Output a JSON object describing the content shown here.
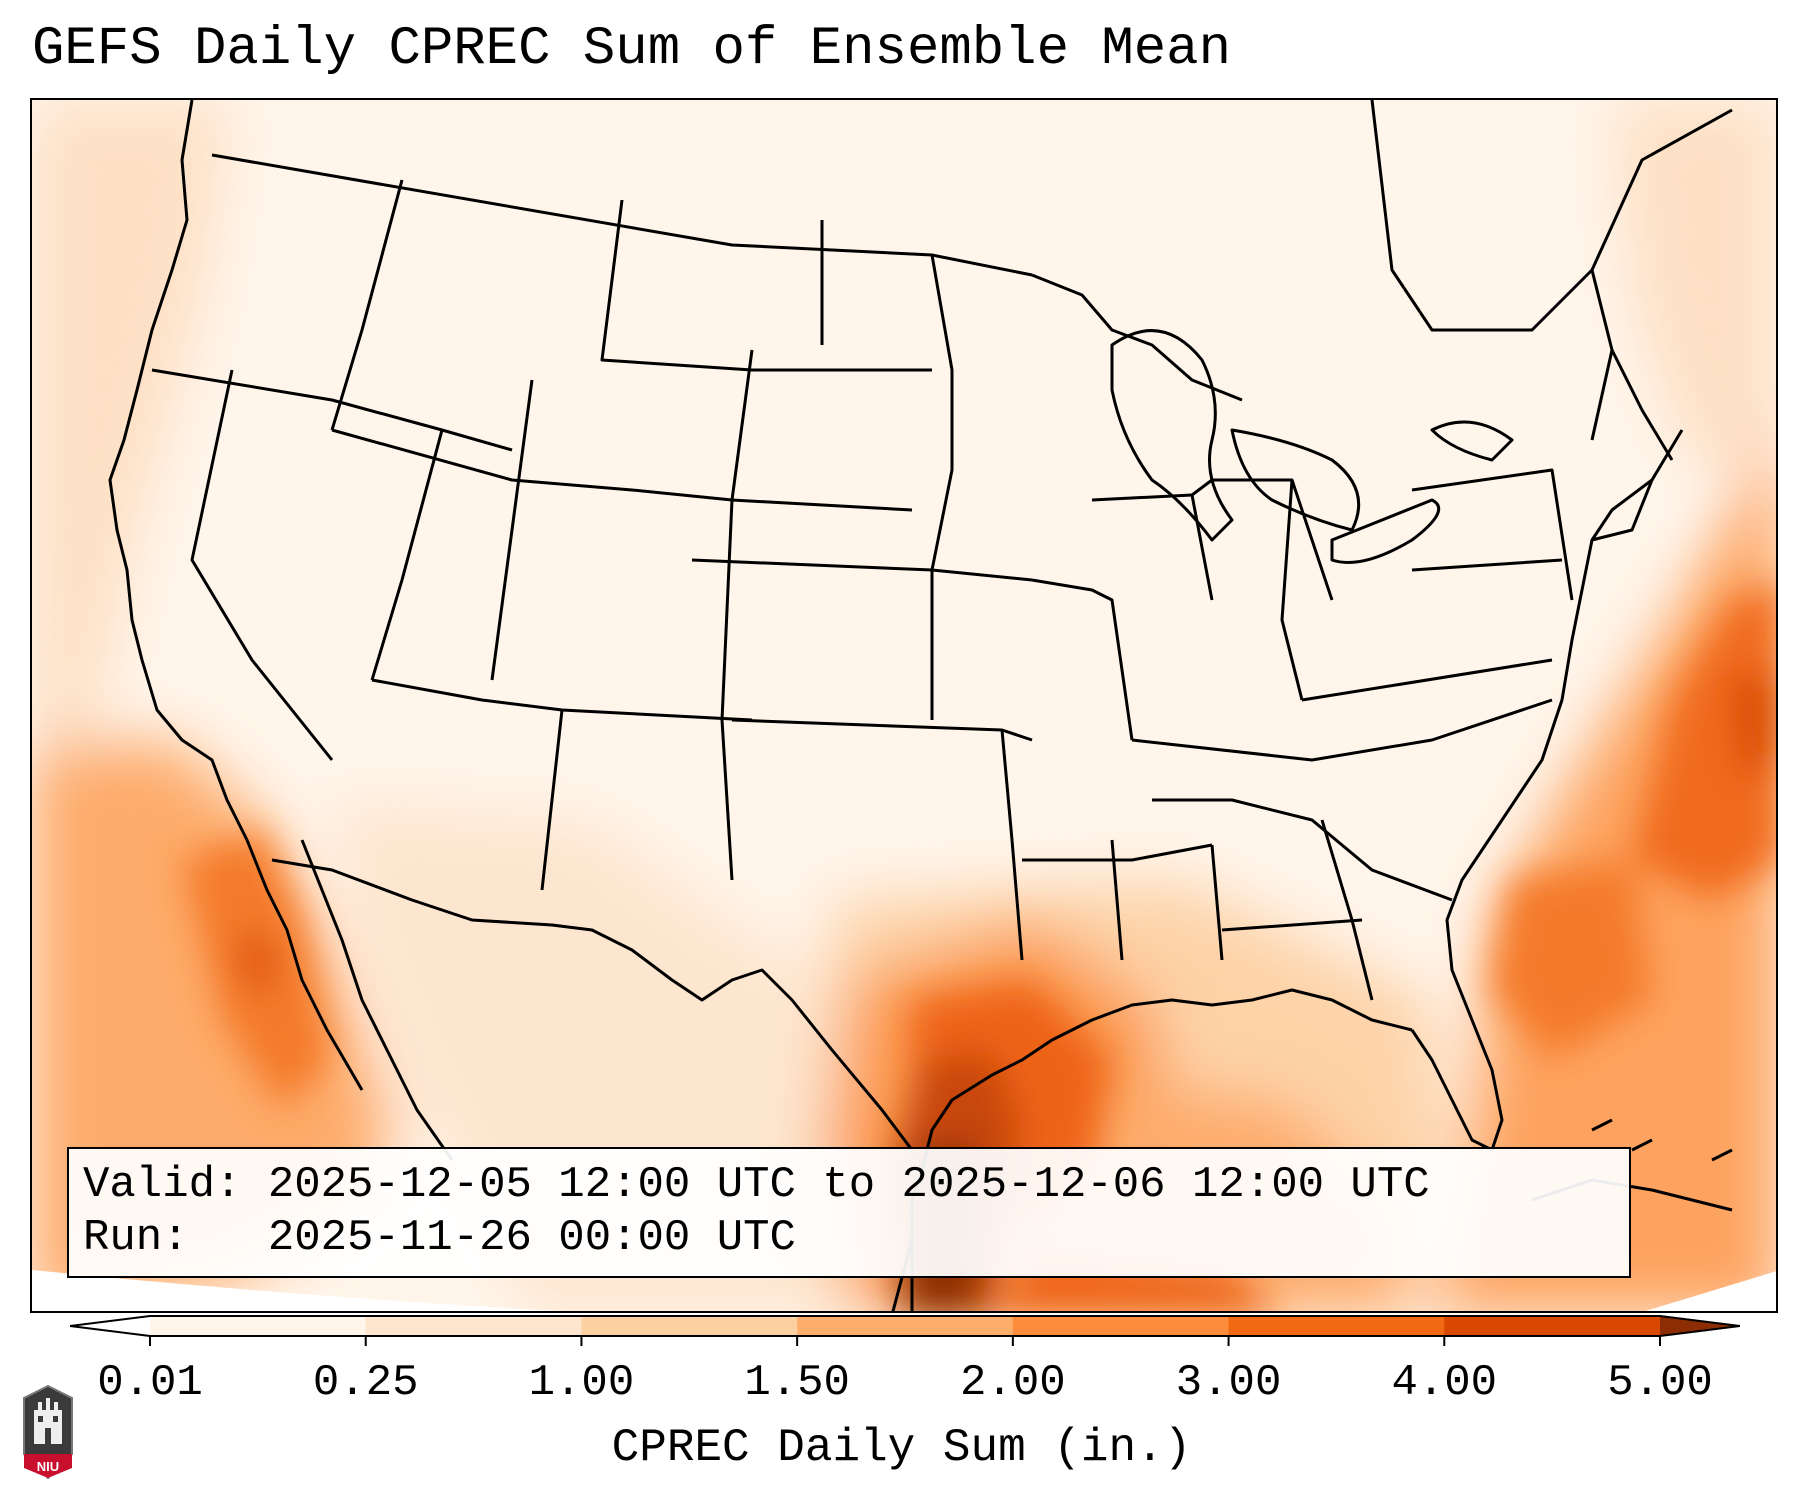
{
  "title": "GEFS Daily CPREC Sum of Ensemble Mean",
  "info": {
    "valid_label": "Valid:",
    "valid_value": "2025-12-05 12:00 UTC to 2025-12-06 12:00 UTC",
    "run_label": "Run:",
    "run_value": "2025-11-26 00:00 UTC"
  },
  "colorbar": {
    "ticks": [
      "0.01",
      "0.25",
      "1.00",
      "1.50",
      "2.00",
      "3.00",
      "4.00",
      "5.00"
    ],
    "colors": [
      "#ffffff",
      "#fff5eb",
      "#fee6ce",
      "#fdd0a2",
      "#fdae6b",
      "#fd8d3c",
      "#f16913",
      "#d94801",
      "#8c2d04"
    ],
    "label": "CPREC Daily Sum (in.)",
    "extend": "both"
  },
  "logo": {
    "text": "NIU",
    "icon": "niu-university-seal-icon"
  },
  "map": {
    "region": "Continental United States",
    "colormap": "oranges"
  }
}
